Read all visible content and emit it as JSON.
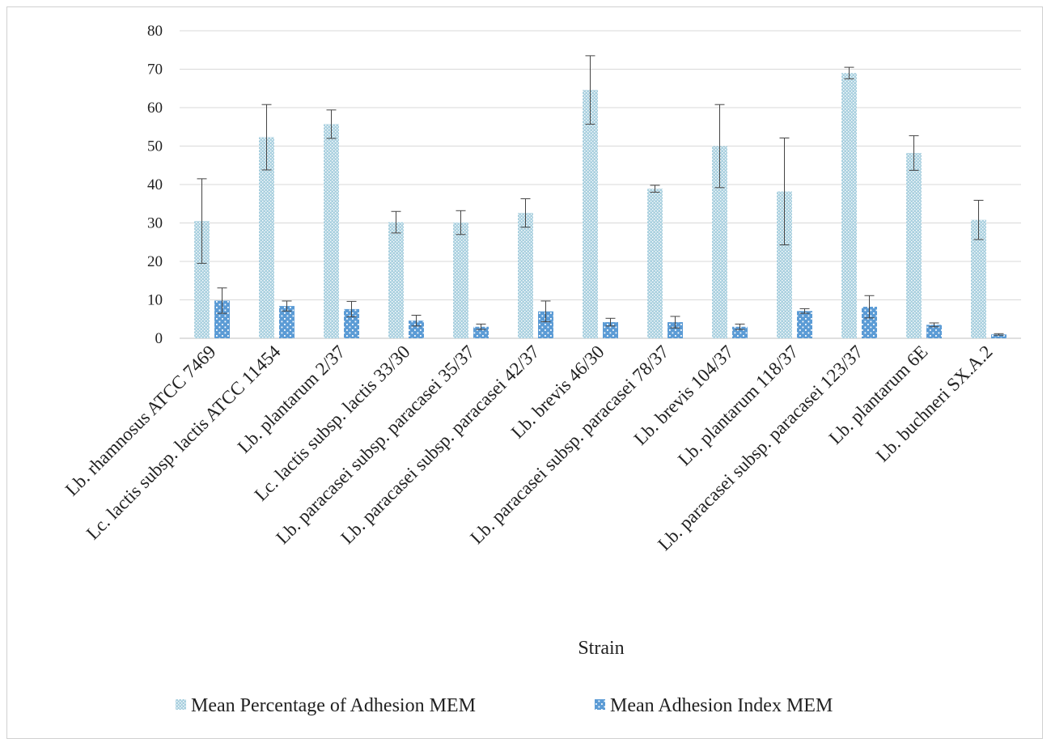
{
  "chart_data": {
    "type": "bar",
    "title": "",
    "xlabel": "Strain",
    "ylabel": "",
    "ylim": [
      0,
      80
    ],
    "yticks": [
      "0",
      "10",
      "20",
      "30",
      "40",
      "50",
      "60",
      "70",
      "80"
    ],
    "grid": true,
    "legend_position": "bottom",
    "categories": [
      "Lb. rhamnosus ATCC 7469",
      "Lc. lactis subsp. lactis ATCC 11454",
      "Lb. plantarum 2/37",
      "Lc. lactis subsp. lactis 33/30",
      "Lb. paracasei subsp. paracasei 35/37",
      "Lb. paracasei subsp. paracasei 42/37",
      "Lb. brevis 46/30",
      "Lb. paracasei subsp. paracasei 78/37",
      "Lb. brevis 104/37",
      "Lb. plantarum 118/37",
      "Lb. paracasei subsp. paracasei 123/37",
      "Lb. plantarum 6E",
      "Lb. buchneri SX.A.2"
    ],
    "series": [
      {
        "name": "Mean Percentage of Adhesion MEM",
        "color": "#a9d0df",
        "values": [
          30.5,
          52.3,
          55.7,
          30.2,
          30.1,
          32.6,
          64.6,
          38.9,
          50.0,
          38.2,
          69.0,
          48.2,
          30.8
        ],
        "errors": [
          11.0,
          8.5,
          3.7,
          2.8,
          3.1,
          3.7,
          8.9,
          0.9,
          10.8,
          13.9,
          1.5,
          4.5,
          5.1
        ]
      },
      {
        "name": "Mean Adhesion Index MEM",
        "color": "#5b9bd5",
        "values": [
          9.8,
          8.4,
          7.6,
          4.6,
          3.0,
          7.0,
          4.2,
          4.2,
          3.0,
          7.1,
          8.2,
          3.5,
          1.0
        ],
        "errors": [
          3.3,
          1.3,
          2.0,
          1.4,
          0.7,
          2.7,
          1.0,
          1.5,
          0.7,
          0.6,
          2.9,
          0.5,
          0.2
        ]
      }
    ]
  }
}
